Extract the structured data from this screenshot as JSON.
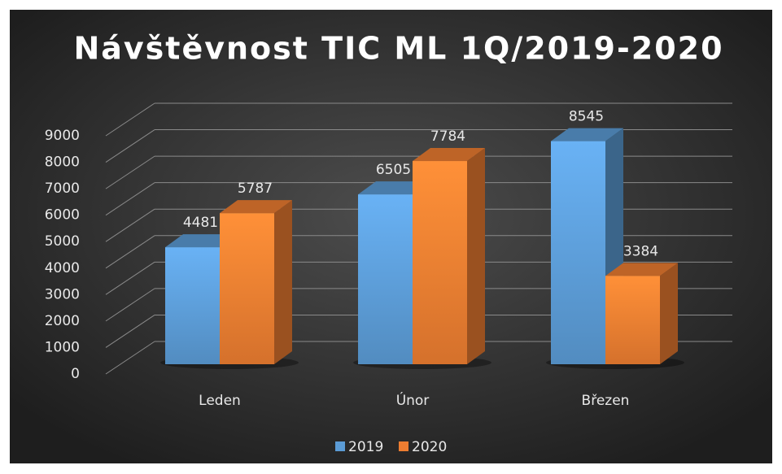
{
  "chart_data": {
    "type": "bar3d",
    "title": "Návštěvnost TIC ML 1Q/2019-2020",
    "categories": [
      "Leden",
      "Únor",
      "Březen"
    ],
    "series": [
      {
        "name": "2019",
        "color": "#5b9bd5",
        "values": [
          4481,
          6505,
          8545
        ]
      },
      {
        "name": "2020",
        "color": "#ed7d31",
        "values": [
          5787,
          7784,
          3384
        ]
      }
    ],
    "ylim": [
      0,
      9000
    ],
    "yticks": [
      0,
      1000,
      2000,
      3000,
      4000,
      5000,
      6000,
      7000,
      8000,
      9000
    ],
    "grid": true,
    "legend": "bottom",
    "data_labels": true
  }
}
